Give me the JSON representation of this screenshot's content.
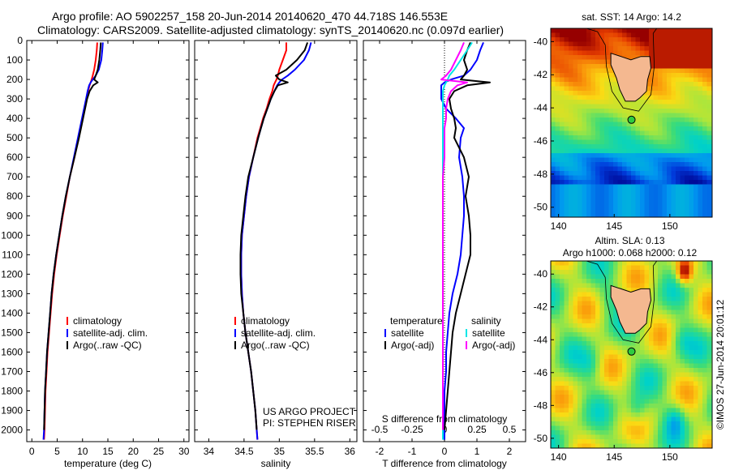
{
  "header": {
    "line1": "Argo profile: AO 5902257_158 20-Jun-2014 20140620_470 44.718S 146.553E",
    "line2": "Climatology: CARS2009. Satellite-adjusted climatology: synTS_20140620.nc (0.097d earlier)"
  },
  "colors": {
    "red": "#ff0000",
    "blue": "#0000ff",
    "black": "#000000",
    "cyan": "#00e6e6",
    "magenta": "#ff00ff",
    "land": "#f4b890"
  },
  "chart_data": [
    {
      "type": "line",
      "xlabel": "temperature (deg C)",
      "xticks": [
        0,
        5,
        10,
        15,
        20,
        25,
        30
      ],
      "xlim": [
        -1,
        31
      ],
      "ylim": [
        0,
        2060
      ],
      "yticks": [
        0,
        100,
        200,
        300,
        400,
        500,
        600,
        700,
        800,
        900,
        1000,
        1100,
        1200,
        1300,
        1400,
        1500,
        1600,
        1700,
        1800,
        1900,
        2000
      ],
      "depth": [
        10,
        50,
        100,
        150,
        180,
        200,
        215,
        230,
        260,
        300,
        350,
        400,
        450,
        500,
        600,
        700,
        800,
        900,
        1000,
        1100,
        1200,
        1300,
        1400,
        1500,
        1600,
        1700,
        1800,
        1900,
        2000,
        2050
      ],
      "legend": [
        "climatology",
        "satellite-adj. clim.",
        "Argo(..raw -QC)"
      ],
      "series": [
        {
          "name": "climatology",
          "color": "red",
          "values": [
            12.9,
            12.8,
            12.6,
            12.3,
            12.0,
            11.8,
            11.6,
            11.4,
            11.1,
            10.8,
            10.4,
            10.0,
            9.6,
            9.2,
            8.4,
            7.5,
            6.8,
            6.1,
            5.5,
            4.9,
            4.4,
            4.0,
            3.7,
            3.4,
            3.1,
            2.9,
            2.7,
            2.6,
            2.5,
            2.4
          ]
        },
        {
          "name": "satellite-adj. clim.",
          "color": "blue",
          "values": [
            14.0,
            13.9,
            13.7,
            13.2,
            12.6,
            12.0,
            11.6,
            11.3,
            11.0,
            10.7,
            10.3,
            9.9,
            9.5,
            9.1,
            8.3,
            7.5,
            6.7,
            6.0,
            5.4,
            4.8,
            4.3,
            3.9,
            3.6,
            3.3,
            3.0,
            2.8,
            2.6,
            2.5,
            2.4,
            2.3
          ]
        },
        {
          "name": "Argo(..raw -QC)",
          "color": "black",
          "values": [
            13.6,
            13.5,
            13.3,
            13.0,
            12.6,
            12.3,
            13.0,
            12.1,
            11.4,
            10.9,
            10.5,
            10.1,
            9.7,
            9.3,
            8.4,
            7.5,
            6.7,
            6.0,
            5.4,
            4.8,
            4.3,
            3.9,
            3.6,
            3.3,
            3.0,
            2.8,
            2.6,
            2.5,
            2.4,
            null
          ]
        }
      ]
    },
    {
      "type": "line",
      "xlabel": "salinity",
      "xticks": [
        34,
        34.5,
        35,
        35.5,
        36
      ],
      "xtick_labels": [
        "34",
        "34.5",
        "35",
        "35.5",
        "36"
      ],
      "xlim": [
        33.8,
        36.1
      ],
      "ylim": [
        0,
        2060
      ],
      "depth": [
        10,
        50,
        100,
        150,
        180,
        200,
        215,
        230,
        260,
        300,
        350,
        400,
        450,
        500,
        600,
        700,
        800,
        900,
        1000,
        1100,
        1200,
        1300,
        1400,
        1500,
        1600,
        1700,
        1800,
        1900,
        2000,
        2050
      ],
      "legend": [
        "climatology",
        "satellite-adj. clim.",
        "Argo(..raw -QC)"
      ],
      "series": [
        {
          "name": "climatology",
          "color": "red",
          "values": [
            35.1,
            35.1,
            35.05,
            35.0,
            34.98,
            34.96,
            34.94,
            34.92,
            34.9,
            34.86,
            34.82,
            34.77,
            34.73,
            34.69,
            34.63,
            34.57,
            34.53,
            34.5,
            34.47,
            34.46,
            34.46,
            34.47,
            34.49,
            34.52,
            34.56,
            34.6,
            34.63,
            34.66,
            34.68,
            34.69
          ]
        },
        {
          "name": "satellite-adj. clim.",
          "color": "blue",
          "values": [
            35.45,
            35.42,
            35.35,
            35.22,
            35.12,
            35.04,
            35.0,
            34.97,
            34.93,
            34.88,
            34.83,
            34.78,
            34.74,
            34.7,
            34.63,
            34.57,
            34.53,
            34.5,
            34.47,
            34.46,
            34.46,
            34.47,
            34.49,
            34.52,
            34.56,
            34.6,
            34.63,
            34.66,
            34.68,
            34.69
          ]
        },
        {
          "name": "Argo(..raw -QC)",
          "color": "black",
          "values": [
            35.4,
            35.36,
            35.25,
            35.1,
            34.95,
            35.0,
            35.12,
            34.98,
            34.93,
            34.88,
            34.83,
            34.78,
            34.74,
            34.7,
            34.63,
            34.56,
            34.52,
            34.49,
            34.46,
            34.45,
            34.45,
            34.46,
            34.49,
            34.52,
            34.56,
            34.6,
            34.63,
            34.66,
            34.68,
            null
          ]
        }
      ],
      "annotation": [
        "US ARGO PROJECT",
        "PI: STEPHEN RISER"
      ]
    },
    {
      "type": "line",
      "xlabel": "T difference from climatology",
      "xticks": [
        -2,
        -1,
        0,
        1,
        2
      ],
      "xlim": [
        -2.5,
        2.5
      ],
      "xlabel_top": "S difference from climatology",
      "xticks_top": [
        -0.5,
        -0.25,
        0,
        0.25,
        0.5
      ],
      "xtick_labels_top": [
        "-0.5",
        "-0.25",
        "0",
        "0.25",
        "0.5"
      ],
      "ylim": [
        0,
        2060
      ],
      "depth": [
        10,
        50,
        100,
        150,
        180,
        200,
        215,
        230,
        260,
        300,
        350,
        400,
        450,
        500,
        600,
        700,
        800,
        900,
        1000,
        1100,
        1200,
        1300,
        1400,
        1500,
        1600,
        1700,
        1800,
        1900,
        2000,
        2050
      ],
      "legend_groups": [
        {
          "title": "temperature",
          "items": [
            "satellite",
            "Argo(-adj)"
          ]
        },
        {
          "title": "salinity",
          "items": [
            "satellite",
            "Argo(-adj)"
          ]
        }
      ],
      "series": [
        {
          "name": "temperature satellite",
          "color": "blue",
          "values": [
            1.2,
            1.1,
            1.0,
            0.8,
            0.6,
            0.2,
            0.0,
            -0.1,
            -0.1,
            -0.1,
            0.05,
            0.35,
            0.6,
            0.5,
            0.45,
            0.55,
            0.6,
            0.6,
            0.55,
            0.5,
            0.4,
            0.25,
            0.15,
            0.1,
            0.05,
            0.05,
            0.0,
            0.0,
            0.0,
            0.0
          ]
        },
        {
          "name": "temperature Argo(-adj)",
          "color": "black",
          "values": [
            0.8,
            0.7,
            0.6,
            0.7,
            0.6,
            0.5,
            1.4,
            0.7,
            0.3,
            0.15,
            0.2,
            0.3,
            0.35,
            0.3,
            0.6,
            0.75,
            0.65,
            0.75,
            0.8,
            0.8,
            0.65,
            0.5,
            0.35,
            0.25,
            0.2,
            0.15,
            0.1,
            0.05,
            0.0,
            null
          ]
        },
        {
          "name": "salinity satellite",
          "color": "cyan",
          "values": [
            0.85,
            0.7,
            0.5,
            0.3,
            0.15,
            0.1,
            0.05,
            0.0,
            -0.05,
            -0.05,
            -0.05,
            -0.05,
            -0.05,
            -0.05,
            -0.05,
            -0.05,
            -0.05,
            -0.05,
            -0.05,
            -0.05,
            -0.05,
            -0.05,
            -0.05,
            -0.05,
            -0.05,
            -0.05,
            -0.05,
            -0.05,
            -0.05,
            -0.05
          ]
        },
        {
          "name": "salinity Argo(-adj)",
          "color": "magenta",
          "values": [
            0.6,
            0.5,
            0.35,
            0.2,
            0.05,
            -0.1,
            0.7,
            0.4,
            0.2,
            0.1,
            0.05,
            0.05,
            0.0,
            0.0,
            0.0,
            -0.05,
            -0.05,
            -0.05,
            -0.05,
            -0.05,
            -0.05,
            -0.05,
            -0.05,
            -0.05,
            -0.05,
            -0.05,
            -0.05,
            -0.05,
            -0.05,
            null
          ]
        }
      ]
    },
    {
      "type": "heatmap",
      "title": "sat. SST: 14 Argo: 14.2",
      "xticks": [
        140,
        145,
        150
      ],
      "yticks": [
        -40,
        -42,
        -44,
        -46,
        -48,
        -50
      ],
      "xlim": [
        139.3,
        153.8
      ],
      "ylim": [
        -50.6,
        -39.2
      ],
      "argo_position": [
        146.553,
        -44.718
      ]
    },
    {
      "type": "heatmap",
      "title": "Altim. SLA: 0.13",
      "subtitle": "Argo h1000: 0.068 h2000: 0.12",
      "xticks": [
        140,
        145,
        150
      ],
      "yticks": [
        -40,
        -42,
        -44,
        -46,
        -48,
        -50
      ],
      "xlim": [
        139.3,
        153.8
      ],
      "ylim": [
        -50.6,
        -39.2
      ],
      "argo_position": [
        146.553,
        -44.718
      ],
      "side_text": "©IMOS 27-Jun-2014 20:01:12"
    }
  ]
}
